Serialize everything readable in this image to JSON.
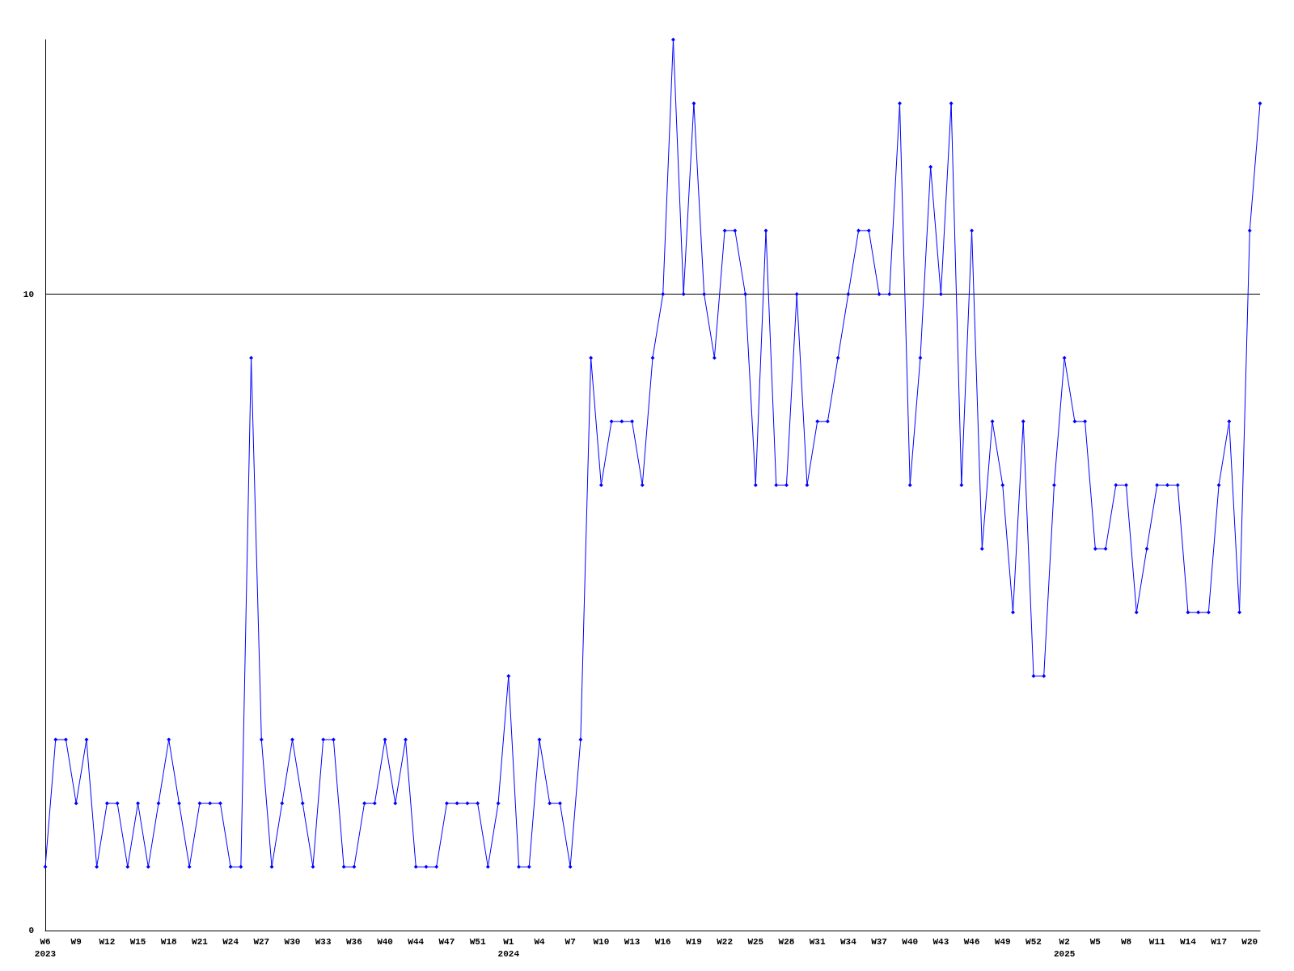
{
  "chart_data": {
    "type": "line",
    "categories": [
      "W6\n2023",
      null,
      null,
      "W9",
      null,
      null,
      "W12",
      null,
      null,
      "W15",
      null,
      null,
      "W18",
      null,
      null,
      "W21",
      null,
      null,
      "W24",
      null,
      null,
      "W27",
      null,
      null,
      "W30",
      null,
      null,
      "W33",
      null,
      null,
      "W36",
      null,
      null,
      "W40",
      null,
      null,
      "W44",
      null,
      null,
      "W47",
      null,
      null,
      "W51",
      null,
      null,
      "W1\n2024",
      null,
      null,
      "W4",
      null,
      null,
      "W7",
      null,
      null,
      "W10",
      null,
      null,
      "W13",
      null,
      null,
      "W16",
      null,
      null,
      "W19",
      null,
      null,
      "W22",
      null,
      null,
      "W25",
      null,
      null,
      "W28",
      null,
      null,
      "W31",
      null,
      null,
      "W34",
      null,
      null,
      "W37",
      null,
      null,
      "W40",
      null,
      null,
      "W43",
      null,
      null,
      "W46",
      null,
      null,
      "W49",
      null,
      null,
      "W52",
      null,
      null,
      "W2\n2025",
      null,
      null,
      "W5",
      null,
      null,
      "W8",
      null,
      null,
      "W11",
      null,
      null,
      "W14",
      null,
      null,
      "W17",
      null,
      null,
      "W20",
      null
    ],
    "series": [
      {
        "color": "#0000ff",
        "values": [
          1,
          3,
          3,
          2,
          3,
          1,
          2,
          2,
          1,
          2,
          1,
          2,
          3,
          2,
          1,
          2,
          2,
          2,
          1,
          1,
          9,
          3,
          1,
          2,
          3,
          2,
          1,
          3,
          3,
          1,
          1,
          2,
          2,
          3,
          2,
          3,
          1,
          1,
          1,
          2,
          2,
          2,
          2,
          1,
          2,
          4,
          1,
          1,
          3,
          2,
          2,
          1,
          3,
          9,
          7,
          8,
          8,
          8,
          7,
          9,
          10,
          14,
          10,
          13,
          10,
          9,
          11,
          11,
          10,
          7,
          11,
          7,
          7,
          10,
          7,
          8,
          8,
          9,
          10,
          11,
          11,
          10,
          10,
          13,
          7,
          9,
          12,
          10,
          13,
          7,
          11,
          6,
          8,
          7,
          5,
          8,
          4,
          4,
          7,
          9,
          8,
          8,
          6,
          6,
          7,
          7,
          5,
          6,
          7,
          7,
          7,
          5,
          5,
          5,
          7,
          8,
          5,
          11,
          13
        ]
      }
    ],
    "ylim": [
      0,
      14
    ],
    "yticks": [
      0,
      10
    ],
    "grid": "y",
    "marker": "diamond",
    "line_style": "solid"
  }
}
